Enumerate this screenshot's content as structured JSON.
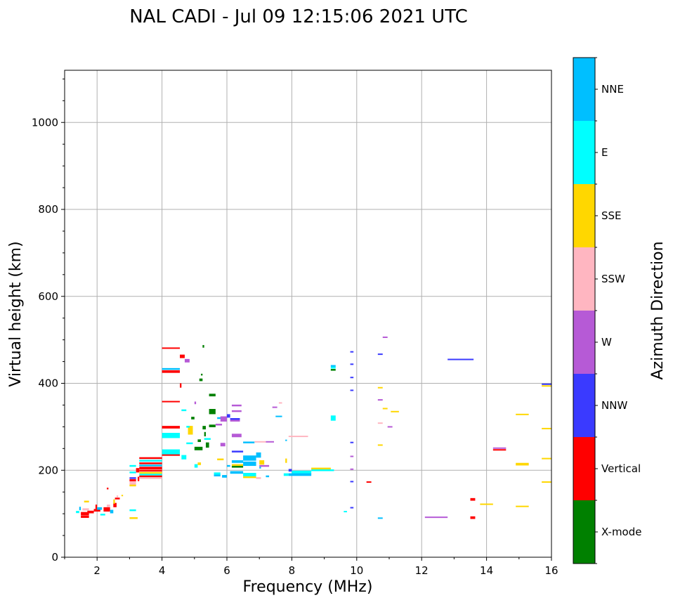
{
  "chart_data": {
    "type": "scatter",
    "title": "NAL CADI - Jul 09 12:15:06 2021 UTC",
    "xlabel": "Frequency (MHz)",
    "ylabel": "Virtual height (km)",
    "xlim": [
      1,
      16
    ],
    "ylim": [
      0,
      1120
    ],
    "xticks": [
      2,
      4,
      6,
      8,
      10,
      12,
      14,
      16
    ],
    "yticks": [
      0,
      200,
      400,
      600,
      800,
      1000
    ],
    "grid": true,
    "colorbar": {
      "label": "Azimuth Direction",
      "categories": [
        {
          "name": "X-mode",
          "color": "#008000"
        },
        {
          "name": "Vertical",
          "color": "#ff0000"
        },
        {
          "name": "NNW",
          "color": "#3a3aff"
        },
        {
          "name": "W",
          "color": "#b65ad6"
        },
        {
          "name": "SSW",
          "color": "#ffb6c1"
        },
        {
          "name": "SSE",
          "color": "#ffd700"
        },
        {
          "name": "E",
          "color": "#00ffff"
        },
        {
          "name": "NNE",
          "color": "#00bfff"
        }
      ]
    },
    "segment_fields": [
      "f_start_MHz",
      "f_end_MHz",
      "height_km",
      "category_index",
      "height_span_km"
    ],
    "segments": [
      [
        1.35,
        1.45,
        104,
        6,
        5
      ],
      [
        1.45,
        1.5,
        112,
        7,
        8
      ],
      [
        1.5,
        1.75,
        100,
        1,
        8
      ],
      [
        1.5,
        1.75,
        93,
        1,
        5
      ],
      [
        1.55,
        1.75,
        110,
        4,
        5
      ],
      [
        1.7,
        1.9,
        104,
        1,
        6
      ],
      [
        1.6,
        1.75,
        128,
        5,
        4
      ],
      [
        1.9,
        2.1,
        108,
        1,
        6
      ],
      [
        1.95,
        2.0,
        116,
        1,
        10
      ],
      [
        2.0,
        2.15,
        112,
        7,
        6
      ],
      [
        2.1,
        2.25,
        98,
        6,
        4
      ],
      [
        2.2,
        2.4,
        110,
        1,
        10
      ],
      [
        2.3,
        2.4,
        118,
        4,
        6
      ],
      [
        2.4,
        2.5,
        105,
        7,
        8
      ],
      [
        2.5,
        2.6,
        120,
        1,
        10
      ],
      [
        2.5,
        2.55,
        128,
        5,
        10
      ],
      [
        2.55,
        2.7,
        135,
        1,
        4
      ],
      [
        2.6,
        2.65,
        140,
        4,
        4
      ],
      [
        2.3,
        2.35,
        158,
        1,
        4
      ],
      [
        2.75,
        2.8,
        142,
        5,
        3
      ],
      [
        3.0,
        3.2,
        210,
        6,
        4
      ],
      [
        3.0,
        3.2,
        195,
        6,
        4
      ],
      [
        3.0,
        3.2,
        182,
        2,
        4
      ],
      [
        3.0,
        3.2,
        177,
        1,
        5
      ],
      [
        3.0,
        3.2,
        170,
        4,
        8
      ],
      [
        3.0,
        3.2,
        165,
        5,
        4
      ],
      [
        3.0,
        3.2,
        108,
        6,
        4
      ],
      [
        3.0,
        3.25,
        90,
        5,
        4
      ],
      [
        3.2,
        3.3,
        200,
        1,
        10
      ],
      [
        3.25,
        3.3,
        180,
        1,
        10
      ],
      [
        3.3,
        4.0,
        228,
        1,
        4
      ],
      [
        3.3,
        4.0,
        222,
        6,
        4
      ],
      [
        3.3,
        4.0,
        216,
        1,
        4
      ],
      [
        3.3,
        4.0,
        211,
        7,
        4
      ],
      [
        3.3,
        4.0,
        205,
        1,
        6
      ],
      [
        3.3,
        4.0,
        199,
        1,
        4
      ],
      [
        3.3,
        4.0,
        194,
        5,
        4
      ],
      [
        3.3,
        4.0,
        190,
        6,
        4
      ],
      [
        3.3,
        4.0,
        186,
        1,
        4
      ],
      [
        3.3,
        4.0,
        182,
        4,
        4
      ],
      [
        4.0,
        4.55,
        481,
        1,
        3
      ],
      [
        4.0,
        4.55,
        433,
        7,
        4
      ],
      [
        4.0,
        4.55,
        427,
        1,
        6
      ],
      [
        4.0,
        4.55,
        358,
        1,
        3
      ],
      [
        4.0,
        4.55,
        299,
        1,
        6
      ],
      [
        4.0,
        4.55,
        280,
        6,
        12
      ],
      [
        4.0,
        4.55,
        242,
        6,
        12
      ],
      [
        4.0,
        4.55,
        235,
        1,
        3
      ],
      [
        4.55,
        4.7,
        462,
        1,
        8
      ],
      [
        4.7,
        4.85,
        452,
        3,
        8
      ],
      [
        4.55,
        4.6,
        395,
        1,
        10
      ],
      [
        4.6,
        4.75,
        338,
        6,
        4
      ],
      [
        4.6,
        4.75,
        230,
        6,
        10
      ],
      [
        4.8,
        4.95,
        292,
        5,
        20
      ],
      [
        4.75,
        4.85,
        300,
        6,
        4
      ],
      [
        4.75,
        4.95,
        262,
        6,
        4
      ],
      [
        5.0,
        5.1,
        210,
        6,
        8
      ],
      [
        5.1,
        5.2,
        215,
        5,
        6
      ],
      [
        5.3,
        5.5,
        272,
        6,
        4
      ],
      [
        5.15,
        5.25,
        408,
        0,
        6
      ],
      [
        5.2,
        5.25,
        420,
        0,
        4
      ],
      [
        5.25,
        5.3,
        485,
        0,
        6
      ],
      [
        5.45,
        5.65,
        373,
        0,
        6
      ],
      [
        5.45,
        5.65,
        335,
        0,
        12
      ],
      [
        5.45,
        5.65,
        302,
        0,
        6
      ],
      [
        5.3,
        5.35,
        283,
        0,
        10
      ],
      [
        5.0,
        5.25,
        250,
        0,
        8
      ],
      [
        5.35,
        5.45,
        258,
        0,
        12
      ],
      [
        5.1,
        5.2,
        268,
        0,
        6
      ],
      [
        4.9,
        5.0,
        320,
        0,
        6
      ],
      [
        5.0,
        5.05,
        355,
        3,
        6
      ],
      [
        5.25,
        5.35,
        298,
        0,
        8
      ],
      [
        5.7,
        5.9,
        320,
        7,
        4
      ],
      [
        5.65,
        5.85,
        305,
        3,
        4
      ],
      [
        5.8,
        6.0,
        318,
        3,
        12
      ],
      [
        6.0,
        6.1,
        325,
        2,
        8
      ],
      [
        6.15,
        6.45,
        349,
        3,
        4
      ],
      [
        6.15,
        6.45,
        336,
        3,
        4
      ],
      [
        6.1,
        6.4,
        318,
        2,
        4
      ],
      [
        6.1,
        6.4,
        314,
        3,
        4
      ],
      [
        6.15,
        6.45,
        280,
        3,
        8
      ],
      [
        5.8,
        5.95,
        259,
        3,
        8
      ],
      [
        6.15,
        6.5,
        243,
        2,
        4
      ],
      [
        6.5,
        6.85,
        264,
        7,
        4
      ],
      [
        6.85,
        7.2,
        266,
        4,
        2
      ],
      [
        7.2,
        7.45,
        266,
        3,
        2
      ],
      [
        7.5,
        7.7,
        324,
        7,
        3
      ],
      [
        7.4,
        7.55,
        345,
        3,
        3
      ],
      [
        7.6,
        7.7,
        355,
        4,
        3
      ],
      [
        7.8,
        7.85,
        269,
        7,
        3
      ],
      [
        5.7,
        5.9,
        225,
        5,
        4
      ],
      [
        6.0,
        6.1,
        210,
        7,
        4
      ],
      [
        6.15,
        6.5,
        220,
        7,
        6
      ],
      [
        6.15,
        6.5,
        212,
        5,
        4
      ],
      [
        6.15,
        6.5,
        208,
        0,
        4
      ],
      [
        6.5,
        6.9,
        228,
        7,
        12
      ],
      [
        6.5,
        6.9,
        215,
        7,
        10
      ],
      [
        6.9,
        7.05,
        235,
        7,
        12
      ],
      [
        7.0,
        7.15,
        218,
        5,
        10
      ],
      [
        7.0,
        7.3,
        210,
        3,
        4
      ],
      [
        5.6,
        5.8,
        192,
        6,
        6
      ],
      [
        5.6,
        5.8,
        188,
        7,
        4
      ],
      [
        5.85,
        6.0,
        186,
        7,
        6
      ],
      [
        6.1,
        6.5,
        195,
        7,
        6
      ],
      [
        6.5,
        6.9,
        190,
        6,
        8
      ],
      [
        6.5,
        6.9,
        184,
        5,
        4
      ],
      [
        6.9,
        7.05,
        182,
        4,
        4
      ],
      [
        7.2,
        7.3,
        186,
        7,
        4
      ],
      [
        7.0,
        7.05,
        206,
        7,
        4
      ],
      [
        7.8,
        7.85,
        222,
        5,
        10
      ],
      [
        7.75,
        7.9,
        190,
        6,
        6
      ],
      [
        7.9,
        8.0,
        200,
        2,
        6
      ],
      [
        8.0,
        8.6,
        195,
        6,
        8
      ],
      [
        7.9,
        8.6,
        190,
        7,
        6
      ],
      [
        8.6,
        9.2,
        204,
        5,
        4
      ],
      [
        8.6,
        9.3,
        200,
        6,
        4
      ],
      [
        7.9,
        8.5,
        278,
        4,
        3
      ],
      [
        9.2,
        9.35,
        440,
        7,
        4
      ],
      [
        9.2,
        9.35,
        436,
        6,
        4
      ],
      [
        9.2,
        9.35,
        431,
        0,
        4
      ],
      [
        9.2,
        9.35,
        320,
        6,
        12
      ],
      [
        9.6,
        9.7,
        105,
        6,
        3
      ],
      [
        9.8,
        9.9,
        473,
        2,
        2
      ],
      [
        9.8,
        9.9,
        444,
        2,
        3
      ],
      [
        9.8,
        9.9,
        414,
        2,
        2
      ],
      [
        9.8,
        9.9,
        384,
        2,
        3
      ],
      [
        9.8,
        9.9,
        264,
        2,
        3
      ],
      [
        9.8,
        9.9,
        232,
        3,
        3
      ],
      [
        9.8,
        9.9,
        203,
        3,
        2
      ],
      [
        9.8,
        9.9,
        174,
        2,
        3
      ],
      [
        9.8,
        9.9,
        114,
        2,
        3
      ],
      [
        10.3,
        10.45,
        173,
        1,
        3
      ],
      [
        10.65,
        10.8,
        467,
        2,
        3
      ],
      [
        10.8,
        10.95,
        506,
        3,
        3
      ],
      [
        10.65,
        10.8,
        390,
        5,
        3
      ],
      [
        10.65,
        10.8,
        362,
        3,
        3
      ],
      [
        10.8,
        10.95,
        342,
        5,
        3
      ],
      [
        11.05,
        11.3,
        335,
        5,
        3
      ],
      [
        10.65,
        10.8,
        309,
        4,
        2
      ],
      [
        10.95,
        11.1,
        300,
        3,
        3
      ],
      [
        10.65,
        10.8,
        258,
        5,
        3
      ],
      [
        10.65,
        10.8,
        90,
        7,
        3
      ],
      [
        12.8,
        13.6,
        455,
        2,
        3
      ],
      [
        12.1,
        12.8,
        92,
        3,
        3
      ],
      [
        13.5,
        13.65,
        133,
        1,
        6
      ],
      [
        13.5,
        13.65,
        91,
        1,
        6
      ],
      [
        13.8,
        14.2,
        122,
        5,
        3
      ],
      [
        14.2,
        14.6,
        251,
        3,
        3
      ],
      [
        14.2,
        14.6,
        247,
        1,
        3
      ],
      [
        14.9,
        15.3,
        329,
        5,
        2
      ],
      [
        14.9,
        15.3,
        214,
        5,
        6
      ],
      [
        14.9,
        15.3,
        117,
        5,
        3
      ],
      [
        15.7,
        16.0,
        398,
        2,
        3
      ],
      [
        15.7,
        16.0,
        394,
        5,
        3
      ],
      [
        15.7,
        16.0,
        296,
        5,
        3
      ],
      [
        15.7,
        16.0,
        227,
        5,
        3
      ],
      [
        15.7,
        16.0,
        173,
        5,
        3
      ]
    ]
  }
}
